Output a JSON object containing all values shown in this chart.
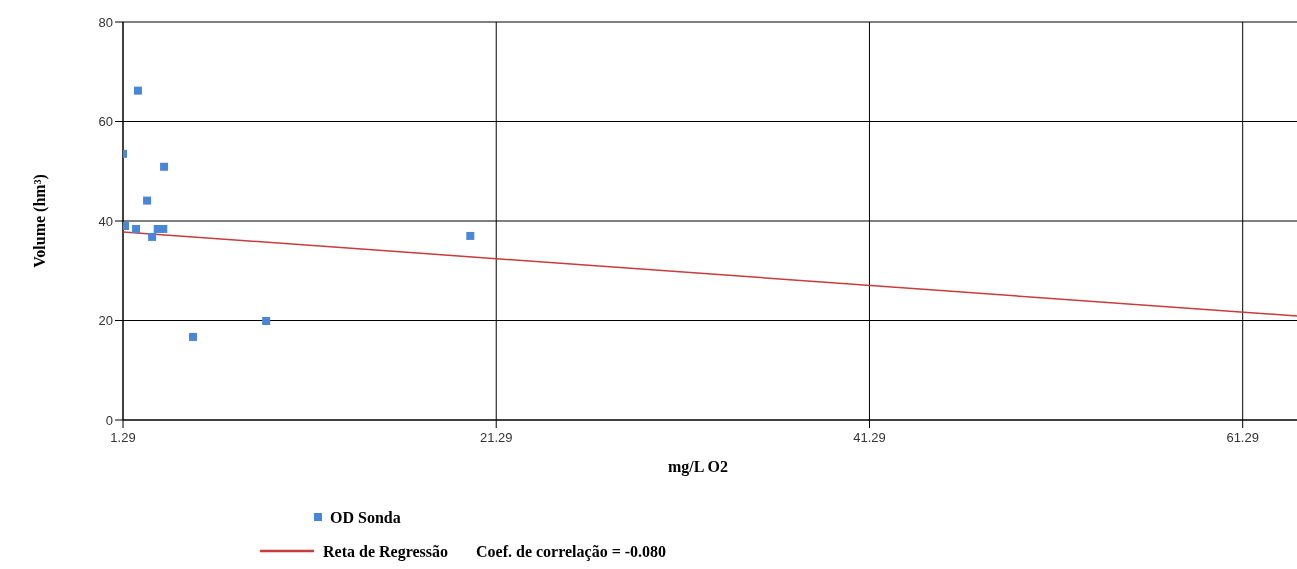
{
  "chart_data": {
    "type": "scatter",
    "xlabel": "mg/L O2",
    "ylabel": "Volume (hm³)",
    "xlim": [
      1.29,
      64.2
    ],
    "ylim": [
      0,
      80
    ],
    "xticks": [
      1.29,
      21.29,
      41.29,
      61.29
    ],
    "yticks": [
      0,
      20,
      40,
      60,
      80
    ],
    "grid": true,
    "legend": "bottom",
    "series": [
      {
        "name": "OD Sonda",
        "marker": "square",
        "color": "#4a86d8",
        "x": [
          2.09,
          1.29,
          3.49,
          2.58,
          1.4,
          1.99,
          2.85,
          3.15,
          3.45,
          5.04,
          8.96,
          19.9
        ],
        "values": [
          66.2,
          53.5,
          50.9,
          44.1,
          39.0,
          38.4,
          36.8,
          38.4,
          38.4,
          16.7,
          19.9,
          37.0
        ]
      },
      {
        "name": "Reta de Regressão",
        "type": "line",
        "color": "#c83c3c",
        "x": [
          1.29,
          64.2
        ],
        "values": [
          37.8,
          20.9
        ]
      }
    ],
    "annotations": [
      "Coef. de correlação = -0.080"
    ]
  }
}
